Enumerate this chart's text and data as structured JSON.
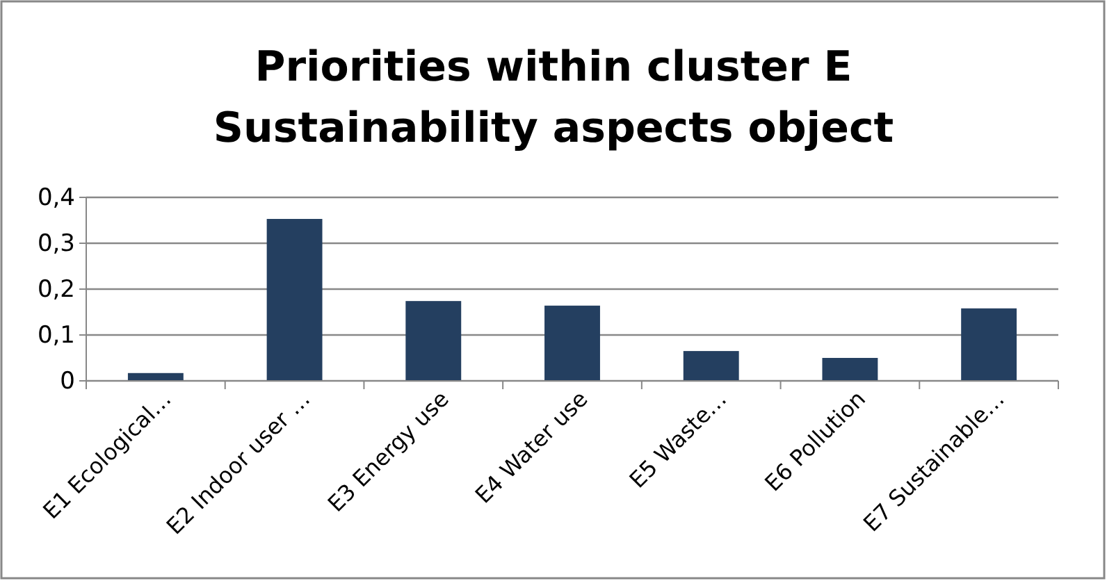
{
  "chart_data": {
    "type": "bar",
    "title": "Priorities within cluster E\nSustainability aspects object",
    "categories": [
      "E1 Ecological…",
      "E2 Indoor user …",
      "E3 Energy use",
      "E4 Water use",
      "E5 Waste…",
      "E6 Pollution",
      "E7 Sustainable…"
    ],
    "values": [
      0.017,
      0.353,
      0.174,
      0.164,
      0.065,
      0.05,
      0.158
    ],
    "color": "#243f60",
    "ylim": [
      0,
      0.4
    ],
    "yticks": [
      {
        "value": 0,
        "label": "0"
      },
      {
        "value": 0.1,
        "label": "0,1"
      },
      {
        "value": 0.2,
        "label": "0,2"
      },
      {
        "value": 0.3,
        "label": "0,3"
      },
      {
        "value": 0.4,
        "label": "0,4"
      }
    ],
    "grid": true
  }
}
